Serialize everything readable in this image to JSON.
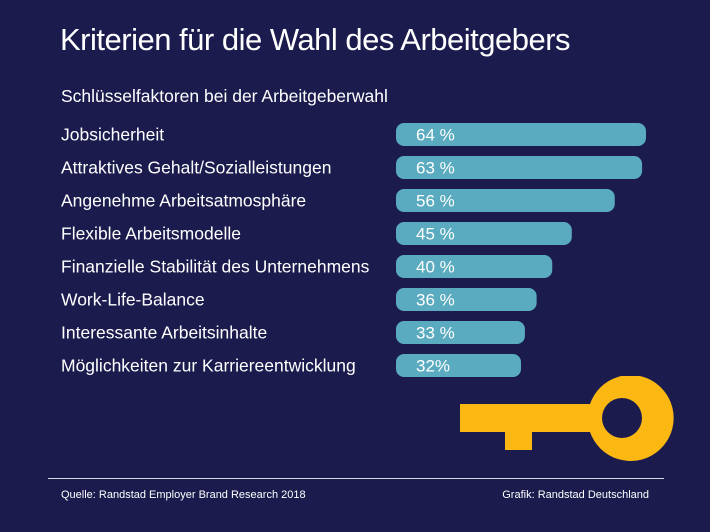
{
  "title": "Kriterien für die Wahl des Arbeitgebers",
  "subtitle": "Schlüsselfaktoren bei der Arbeitgeberwahl",
  "chart_data": {
    "type": "bar",
    "orientation": "horizontal",
    "categories": [
      "Jobsicherheit",
      "Attraktives Gehalt/Sozialleistungen",
      "Angenehme Arbeitsatmosphäre",
      "Flexible Arbeitsmodelle",
      "Finanzielle Stabilität des Unternehmens",
      "Work-Life-Balance",
      "Interessante Arbeitsinhalte",
      "Möglichkeiten zur Karriereentwicklung"
    ],
    "values": [
      64,
      63,
      56,
      45,
      40,
      36,
      33,
      32
    ],
    "data_labels": [
      "64 %",
      "63 %",
      "56 %",
      "45 %",
      "40 %",
      "36 %",
      "33 %",
      "32%"
    ],
    "unit": "%",
    "bar_color": "#5aabbf"
  },
  "colors": {
    "background": "#1b1c4d",
    "bar": "#5aabbf",
    "key": "#fbb813",
    "text": "#ffffff"
  },
  "footer": {
    "source": "Quelle: Randstad Employer Brand Research 2018",
    "credit": "Grafik: Randstad Deutschland"
  }
}
